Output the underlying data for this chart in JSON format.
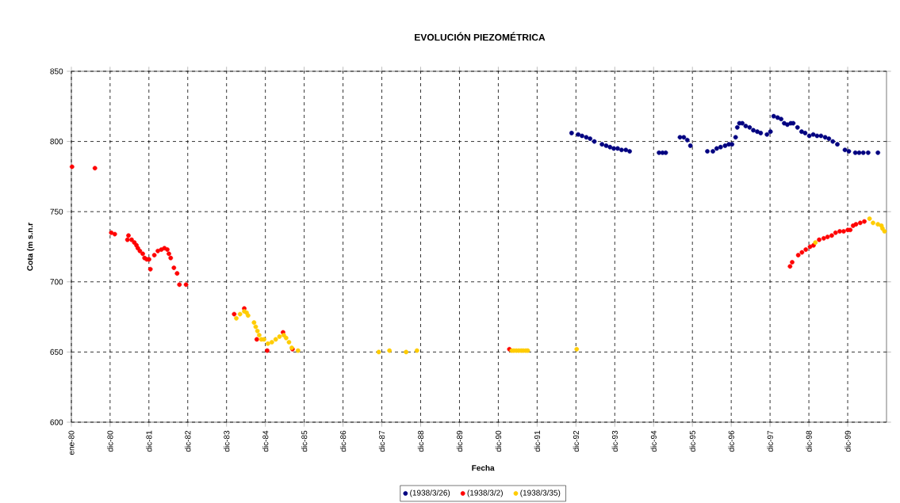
{
  "chart_data": {
    "type": "scatter",
    "title": "EVOLUCIÓN PIEZOMÉTRICA",
    "xlabel": "Fecha",
    "ylabel": "Cota (m s.n.r",
    "xlim": [
      "1980-01-01",
      "2000-12-31"
    ],
    "ylim": [
      600,
      850
    ],
    "xticks": [
      {
        "value": "1980-01-01",
        "label": "ene-80"
      },
      {
        "value": "1980-12-31",
        "label": "dic-80"
      },
      {
        "value": "1981-12-31",
        "label": "dic-81"
      },
      {
        "value": "1982-12-31",
        "label": "dic-82"
      },
      {
        "value": "1983-12-31",
        "label": "dic-83"
      },
      {
        "value": "1984-12-31",
        "label": "dic-84"
      },
      {
        "value": "1985-12-31",
        "label": "dic-85"
      },
      {
        "value": "1986-12-31",
        "label": "dic-86"
      },
      {
        "value": "1987-12-31",
        "label": "dic-87"
      },
      {
        "value": "1988-12-31",
        "label": "dic-88"
      },
      {
        "value": "1989-12-31",
        "label": "dic-89"
      },
      {
        "value": "1990-12-31",
        "label": "dic-90"
      },
      {
        "value": "1991-12-31",
        "label": "dic-91"
      },
      {
        "value": "1992-12-31",
        "label": "dic-92"
      },
      {
        "value": "1993-12-31",
        "label": "dic-93"
      },
      {
        "value": "1994-12-31",
        "label": "dic-94"
      },
      {
        "value": "1995-12-31",
        "label": "dic-95"
      },
      {
        "value": "1996-12-31",
        "label": "dic-96"
      },
      {
        "value": "1997-12-31",
        "label": "dic-97"
      },
      {
        "value": "1998-12-31",
        "label": "dic-98"
      },
      {
        "value": "1999-12-31",
        "label": "dic-99"
      }
    ],
    "yticks": [
      600,
      650,
      700,
      750,
      800,
      850
    ],
    "grid": true,
    "legend": "bottom",
    "marker": "circle",
    "series": [
      {
        "name": "(1938/3/26)",
        "color": "#000080",
        "x": [
          "1992-11-20",
          "1993-01-21",
          "1993-02-26",
          "1993-04-07",
          "1993-05-13",
          "1993-06-22",
          "1993-09-02",
          "1993-10-11",
          "1993-11-16",
          "1993-12-22",
          "1994-01-27",
          "1994-03-05",
          "1994-04-14",
          "1994-05-20",
          "1995-02-20",
          "1995-03-25",
          "1995-04-24",
          "1995-09-05",
          "1995-10-11",
          "1995-11-13",
          "1995-12-12",
          "1996-05-20",
          "1996-07-11",
          "1996-08-16",
          "1996-09-22",
          "1996-11-03",
          "1996-12-08",
          "1997-01-07",
          "1997-02-10",
          "1997-02-26",
          "1997-03-18",
          "1997-04-14",
          "1997-05-16",
          "1997-06-22",
          "1997-07-27",
          "1997-09-02",
          "1997-10-04",
          "1997-12-02",
          "1998-01-04",
          "1998-02-03",
          "1998-03-12",
          "1998-04-14",
          "1998-05-13",
          "1998-06-12",
          "1998-07-14",
          "1998-08-06",
          "1998-09-15",
          "1998-10-24",
          "1998-11-26",
          "1999-01-04",
          "1999-02-10",
          "1999-03-18",
          "1999-04-24",
          "1999-06-02",
          "1999-07-07",
          "1999-08-13",
          "1999-09-25",
          "1999-12-05",
          "2000-01-11",
          "2000-03-12",
          "2000-04-17",
          "2000-05-26",
          "2000-07-11",
          "2000-10-11"
        ],
        "values": [
          806,
          805,
          804,
          803,
          802,
          800,
          798,
          797,
          796,
          795,
          795,
          794,
          794,
          793,
          792,
          792,
          792,
          803,
          803,
          801,
          797,
          793,
          793,
          795,
          796,
          797,
          798,
          798,
          803,
          810,
          813,
          813,
          811,
          810,
          808,
          807,
          806,
          805,
          807,
          818,
          817,
          816,
          813,
          812,
          813,
          813,
          810,
          807,
          806,
          804,
          805,
          804,
          804,
          803,
          802,
          800,
          798,
          794,
          793,
          792,
          792,
          792,
          792,
          792
        ]
      },
      {
        "name": "(1938/3/2)",
        "color": "#ff0000",
        "x": [
          "1980-01-07",
          "1980-08-10",
          "1981-01-11",
          "1981-02-13",
          "1981-06-12",
          "1981-06-22",
          "1981-07-21",
          "1981-08-16",
          "1981-09-05",
          "1981-09-18",
          "1981-10-07",
          "1981-11-03",
          "1981-11-20",
          "1981-12-12",
          "1982-01-01",
          "1982-01-14",
          "1982-02-20",
          "1982-03-25",
          "1982-04-27",
          "1982-05-26",
          "1982-06-22",
          "1982-07-07",
          "1982-07-24",
          "1982-08-23",
          "1982-09-22",
          "1982-10-14",
          "1982-12-15",
          "1984-03-12",
          "1984-06-15",
          "1984-10-11",
          "1985-01-17",
          "1985-06-15",
          "1985-09-12",
          "1991-04-14",
          "1998-07-07",
          "1998-07-27",
          "1998-09-22",
          "1998-10-27",
          "1998-12-02",
          "1999-01-11",
          "1999-02-13",
          "1999-04-07",
          "1999-05-20",
          "1999-06-25",
          "1999-08-03",
          "1999-09-08",
          "1999-10-17",
          "1999-11-23",
          "2000-01-01",
          "2000-01-24",
          "2000-02-20",
          "2000-03-18",
          "2000-04-27",
          "2000-06-05"
        ],
        "values": [
          782,
          781,
          735,
          734,
          730,
          733,
          730,
          728,
          726,
          724,
          722,
          720,
          717,
          716,
          716,
          709,
          719,
          722,
          723,
          724,
          723,
          720,
          717,
          710,
          706,
          698,
          698,
          677,
          681,
          659,
          651,
          664,
          652,
          652,
          711,
          714,
          719,
          721,
          723,
          725,
          726,
          730,
          731,
          732,
          733,
          735,
          736,
          736,
          737,
          737,
          740,
          741,
          742,
          743
        ]
      },
      {
        "name": "(1938/3/35)",
        "color": "#ffcc00",
        "x": [
          "1984-04-01",
          "1984-05-06",
          "1984-06-15",
          "1984-07-07",
          "1984-07-21",
          "1984-09-15",
          "1984-10-01",
          "1984-10-17",
          "1984-11-03",
          "1984-11-23",
          "1984-12-18",
          "1985-01-24",
          "1985-03-02",
          "1985-04-07",
          "1985-05-13",
          "1985-06-22",
          "1985-07-14",
          "1985-08-10",
          "1985-09-05",
          "1985-11-03",
          "1987-12-02",
          "1988-03-12",
          "1988-08-16",
          "1988-11-26",
          "1991-05-06",
          "1991-05-26",
          "1991-06-18",
          "1991-07-11",
          "1991-08-03",
          "1991-08-23",
          "1991-09-15",
          "1991-10-04",
          "1993-01-07",
          "1999-03-02",
          "2000-07-24",
          "2000-08-26",
          "2000-10-11",
          "2000-11-13",
          "2000-11-23",
          "2000-12-12"
        ],
        "values": [
          674,
          677,
          679,
          678,
          676,
          671,
          668,
          665,
          662,
          659,
          659,
          656,
          657,
          659,
          661,
          662,
          660,
          657,
          653,
          651,
          650,
          651,
          650,
          651,
          651,
          651,
          651,
          651,
          651,
          651,
          651,
          651,
          652,
          728,
          745,
          742,
          741,
          740,
          738,
          736
        ]
      }
    ]
  }
}
